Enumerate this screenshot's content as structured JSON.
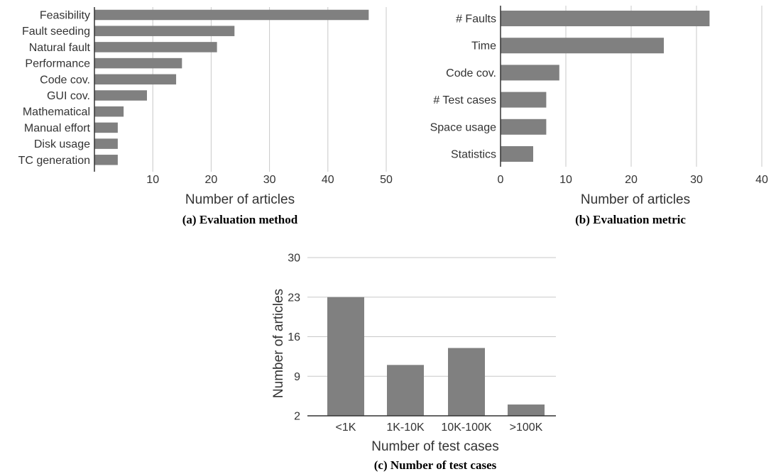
{
  "chart_data": [
    {
      "type": "bar",
      "orientation": "horizontal",
      "caption": "(a) Evaluation method",
      "xlabel": "Number of articles",
      "ylabel": "",
      "xlim": [
        0,
        50
      ],
      "xticks": [
        "10",
        "20",
        "30",
        "40",
        "50"
      ],
      "grid": true,
      "color": "#808080",
      "categories": [
        "Feasibility",
        "Fault seeding",
        "Natural fault",
        "Performance",
        "Code cov.",
        "GUI cov.",
        "Mathematical",
        "Manual effort",
        "Disk usage",
        "TC generation"
      ],
      "values": [
        47,
        24,
        21,
        15,
        14,
        9,
        5,
        4,
        4,
        4
      ]
    },
    {
      "type": "bar",
      "orientation": "horizontal",
      "caption": "(b) Evaluation metric",
      "xlabel": "Number of articles",
      "ylabel": "",
      "xlim": [
        0,
        40
      ],
      "xticks": [
        "0",
        "10",
        "20",
        "30",
        "40"
      ],
      "grid": true,
      "color": "#808080",
      "categories": [
        "# Faults",
        "Time",
        "Code cov.",
        "# Test cases",
        "Space usage",
        "Statistics"
      ],
      "values": [
        32,
        25,
        9,
        7,
        7,
        5
      ]
    },
    {
      "type": "bar",
      "orientation": "vertical",
      "caption": "(c) Number of test cases",
      "xlabel": "Number of test cases",
      "ylabel": "Number of articles",
      "ylim": [
        2,
        30
      ],
      "yticks": [
        "2",
        "9",
        "16",
        "23",
        "30"
      ],
      "grid": true,
      "color": "#808080",
      "categories": [
        "<1K",
        "1K-10K",
        "10K-100K",
        ">100K"
      ],
      "values": [
        23,
        11,
        14,
        4
      ]
    }
  ]
}
